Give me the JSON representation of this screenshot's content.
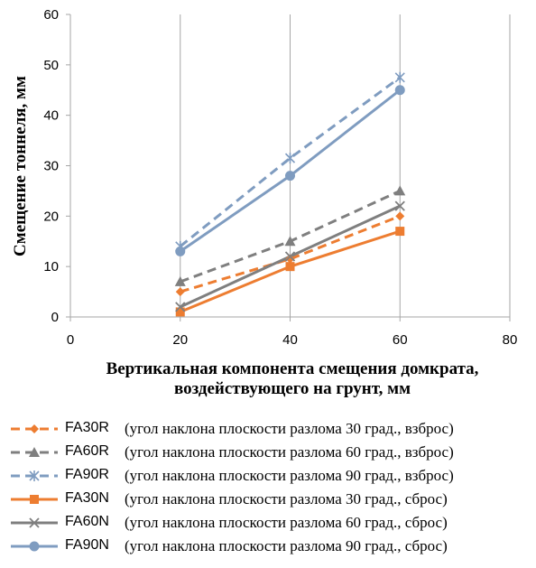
{
  "chart_data": {
    "type": "line",
    "title": "",
    "xlabel_line1": "Вертикальная компонента смещения домкрата,",
    "xlabel_line2": "воздействующего на грунт, мм",
    "ylabel": "Смещение тоннеля, мм",
    "xlim": [
      0,
      80
    ],
    "ylim": [
      0,
      60
    ],
    "xticks": [
      0,
      20,
      40,
      60,
      80
    ],
    "yticks": [
      0,
      10,
      20,
      30,
      40,
      50,
      60
    ],
    "grid": "vertical",
    "legend_position": "bottom",
    "x": [
      20,
      40,
      60
    ],
    "series": [
      {
        "code": "FA30R",
        "desc": "(угол наклона плоскости разлома 30 град., взброс)",
        "values": [
          5,
          11.5,
          20
        ],
        "color": "#ED7D31",
        "dashed": true,
        "marker": "diamond"
      },
      {
        "code": "FA60R",
        "desc": "(угол наклона плоскости разлома 60 град., взброс)",
        "values": [
          7,
          15,
          25
        ],
        "color": "#7F7F7F",
        "dashed": true,
        "marker": "triangle"
      },
      {
        "code": "FA90R",
        "desc": "(угол наклона плоскости разлома 90 град., взброс)",
        "values": [
          14,
          31.5,
          47.5
        ],
        "color": "#7F9CC0",
        "dashed": true,
        "marker": "star"
      },
      {
        "code": "FA30N",
        "desc": "(угол наклона плоскости разлома 30 град., сброс)",
        "values": [
          1,
          10,
          17
        ],
        "color": "#ED7D31",
        "dashed": false,
        "marker": "square"
      },
      {
        "code": "FA60N",
        "desc": "(угол наклона плоскости разлома 60 град., сброс)",
        "values": [
          2,
          12,
          22
        ],
        "color": "#7F7F7F",
        "dashed": false,
        "marker": "x"
      },
      {
        "code": "FA90N",
        "desc": "(угол наклона плоскости разлома 90 град., сброс)",
        "values": [
          13,
          28,
          45
        ],
        "color": "#7F9CC0",
        "dashed": false,
        "marker": "circle"
      }
    ]
  }
}
